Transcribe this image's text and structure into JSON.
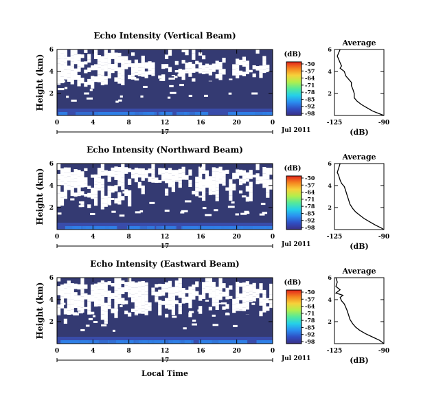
{
  "colors": {
    "background_fill": "#343a72",
    "colorbar_stops": [
      "#3a2f85",
      "#2f4fc4",
      "#2a8ef0",
      "#25d0e8",
      "#55e99a",
      "#b3ee4c",
      "#f7d13a",
      "#f5851f",
      "#e4241b"
    ]
  },
  "chart_data": [
    {
      "type": "heatmap",
      "title": "Echo Intensity (Vertical Beam)",
      "ylabel": "Height (km)",
      "x_ticks": [
        "0",
        "4",
        "8",
        "12",
        "16",
        "20",
        "0"
      ],
      "day_label": "17",
      "date_label": "Jul 2011",
      "y_ticks": [
        "6",
        "4",
        "2"
      ],
      "xlim": [
        0,
        24
      ],
      "ylim": [
        0,
        6
      ],
      "colorbar": {
        "unit_label": "(dB)",
        "ticks": [
          "-50",
          "-57",
          "-64",
          "-71",
          "-78",
          "-85",
          "-92",
          "-98"
        ],
        "range": [
          -98,
          -50
        ]
      },
      "avg_profile": {
        "title": "Average",
        "xlabel": "(dB)",
        "x_ticks": [
          "-125",
          "-90"
        ],
        "y_ticks": [
          "6",
          "4",
          "2"
        ],
        "xlim": [
          -125,
          -90
        ],
        "ylim": [
          0,
          6
        ],
        "points": [
          [
            -121,
            6.0
          ],
          [
            -122,
            5.7
          ],
          [
            -123,
            5.4
          ],
          [
            -122,
            5.1
          ],
          [
            -121,
            4.8
          ],
          [
            -120,
            4.5
          ],
          [
            -121,
            4.3
          ],
          [
            -118,
            4.0
          ],
          [
            -117,
            3.6
          ],
          [
            -115,
            3.3
          ],
          [
            -113,
            3.0
          ],
          [
            -113,
            2.7
          ],
          [
            -112,
            2.4
          ],
          [
            -111,
            2.0
          ],
          [
            -111,
            1.6
          ],
          [
            -109,
            1.3
          ],
          [
            -106,
            1.0
          ],
          [
            -102,
            0.7
          ],
          [
            -98,
            0.4
          ],
          [
            -93,
            0.15
          ],
          [
            -90,
            0.0
          ]
        ]
      }
    },
    {
      "type": "heatmap",
      "title": "Echo Intensity (Northward Beam)",
      "ylabel": "Height (km)",
      "x_ticks": [
        "0",
        "4",
        "8",
        "12",
        "16",
        "20",
        "0"
      ],
      "day_label": "17",
      "date_label": "Jul 2011",
      "y_ticks": [
        "6",
        "4",
        "2"
      ],
      "xlim": [
        0,
        24
      ],
      "ylim": [
        0,
        6
      ],
      "colorbar": {
        "unit_label": "(dB)",
        "ticks": [
          "-50",
          "-57",
          "-64",
          "-71",
          "-78",
          "-85",
          "-92",
          "-98"
        ],
        "range": [
          -98,
          -50
        ]
      },
      "avg_profile": {
        "title": "Average",
        "xlabel": "(dB)",
        "x_ticks": [
          "-125",
          "-90"
        ],
        "y_ticks": [
          "6",
          "4",
          "2"
        ],
        "xlim": [
          -125,
          -90
        ],
        "ylim": [
          0,
          6
        ],
        "points": [
          [
            -121,
            6.0
          ],
          [
            -122,
            5.6
          ],
          [
            -123,
            5.2
          ],
          [
            -122,
            4.9
          ],
          [
            -121,
            4.5
          ],
          [
            -120,
            4.2
          ],
          [
            -118,
            3.9
          ],
          [
            -117,
            3.5
          ],
          [
            -116,
            3.1
          ],
          [
            -115,
            2.7
          ],
          [
            -114,
            2.3
          ],
          [
            -112,
            1.9
          ],
          [
            -110,
            1.6
          ],
          [
            -107,
            1.3
          ],
          [
            -104,
            1.0
          ],
          [
            -100,
            0.7
          ],
          [
            -96,
            0.4
          ],
          [
            -92,
            0.15
          ],
          [
            -90,
            0.0
          ]
        ]
      }
    },
    {
      "type": "heatmap",
      "title": "Echo Intensity (Eastward Beam)",
      "ylabel": "Height (km)",
      "xlabel": "Local Time",
      "x_ticks": [
        "0",
        "4",
        "8",
        "12",
        "16",
        "20",
        "0"
      ],
      "day_label": "17",
      "date_label": "Jul 2011",
      "y_ticks": [
        "6",
        "4",
        "2"
      ],
      "xlim": [
        0,
        24
      ],
      "ylim": [
        0,
        6
      ],
      "colorbar": {
        "unit_label": "(dB)",
        "ticks": [
          "-50",
          "-57",
          "-64",
          "-71",
          "-78",
          "-85",
          "-92",
          "-98"
        ],
        "range": [
          -98,
          -50
        ]
      },
      "avg_profile": {
        "title": "Average",
        "xlabel": "(dB)",
        "x_ticks": [
          "-125",
          "-90"
        ],
        "y_ticks": [
          "6",
          "4",
          "2"
        ],
        "xlim": [
          -125,
          -90
        ],
        "ylim": [
          0,
          6
        ],
        "points": [
          [
            -124,
            6.0
          ],
          [
            -123,
            5.6
          ],
          [
            -124,
            5.2
          ],
          [
            -121,
            4.9
          ],
          [
            -124,
            4.6
          ],
          [
            -119,
            4.4
          ],
          [
            -121,
            4.2
          ],
          [
            -120,
            3.9
          ],
          [
            -118,
            3.6
          ],
          [
            -117,
            3.3
          ],
          [
            -116,
            3.0
          ],
          [
            -115,
            2.6
          ],
          [
            -114,
            2.2
          ],
          [
            -112,
            1.8
          ],
          [
            -110,
            1.5
          ],
          [
            -107,
            1.2
          ],
          [
            -103,
            0.9
          ],
          [
            -98,
            0.6
          ],
          [
            -93,
            0.3
          ],
          [
            -90,
            0.0
          ]
        ]
      }
    }
  ]
}
